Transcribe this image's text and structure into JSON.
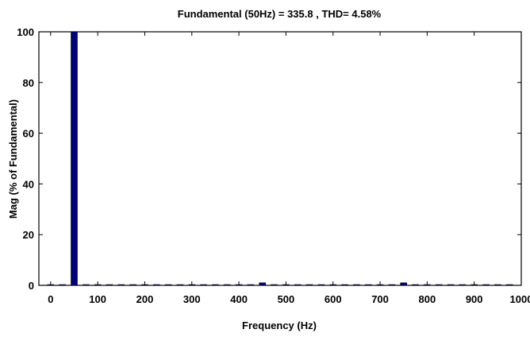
{
  "chart_data": {
    "type": "bar",
    "title": "Fundamental (50Hz) = 335.8 , THD= 4.58%",
    "xlabel": "Frequency (Hz)",
    "ylabel": "Mag (% of Fundamental)",
    "xlim": [
      -25,
      1000
    ],
    "ylim": [
      0,
      100
    ],
    "xticks": [
      0,
      100,
      200,
      300,
      400,
      500,
      600,
      700,
      800,
      900,
      1000
    ],
    "yticks": [
      0,
      20,
      40,
      60,
      80,
      100
    ],
    "bar_color": "#00007f",
    "grid": false,
    "x": [
      0,
      25,
      50,
      75,
      100,
      125,
      150,
      175,
      200,
      225,
      250,
      275,
      300,
      325,
      350,
      375,
      400,
      425,
      450,
      475,
      500,
      525,
      550,
      575,
      600,
      625,
      650,
      675,
      700,
      725,
      750,
      775,
      800,
      825,
      850,
      875,
      900,
      925,
      950,
      975
    ],
    "values": [
      0.3,
      0.3,
      100,
      0.3,
      0.3,
      0.3,
      0.3,
      0.3,
      0.3,
      0.3,
      0.3,
      0.3,
      0.3,
      0.3,
      0.3,
      0.3,
      0.3,
      0.3,
      1.0,
      0.3,
      0.3,
      0.3,
      0.3,
      0.3,
      0.3,
      0.3,
      0.3,
      0.3,
      0.3,
      0.3,
      1.0,
      0.3,
      0.3,
      0.3,
      0.3,
      0.3,
      0.3,
      0.3,
      0.3,
      0.3
    ]
  }
}
